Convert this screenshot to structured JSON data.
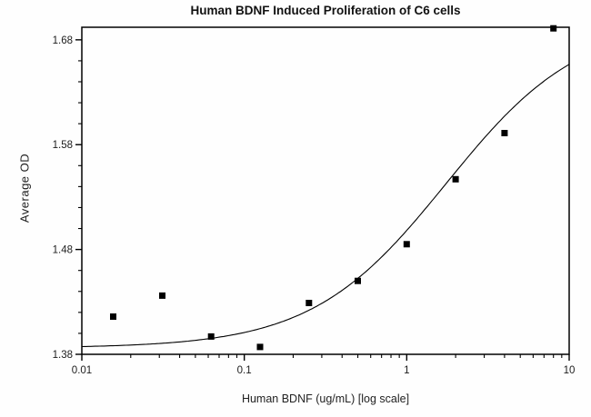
{
  "chart_data": {
    "type": "scatter",
    "title": "Human BDNF Induced Proliferation of C6 cells",
    "xlabel": "Human BDNF (ug/mL) [log scale]",
    "ylabel": "Average OD",
    "x_scale": "log",
    "xlim": [
      0.01,
      10
    ],
    "ylim": [
      1.38,
      1.692
    ],
    "x_major_ticks": [
      0.01,
      0.1,
      1,
      10
    ],
    "x_major_tick_labels": [
      "0.01",
      "0.1",
      "1",
      "10"
    ],
    "x_minor_multipliers": [
      2,
      3,
      4,
      5,
      6,
      7,
      8,
      9
    ],
    "y_major_ticks": [
      1.38,
      1.48,
      1.58,
      1.68
    ],
    "y_major_tick_labels": [
      "1.38",
      "1.48",
      "1.58",
      "1.68"
    ],
    "y_minor_step": 0.02,
    "grid": false,
    "legend_position": "none",
    "marker": "filled-square",
    "marker_color": "#000000",
    "line_color": "#000000",
    "axis_color": "#000000",
    "background_color": "#fefefe",
    "series": [
      {
        "name": "Average OD",
        "points": [
          {
            "x": 0.0156,
            "y": 1.416
          },
          {
            "x": 0.0313,
            "y": 1.436
          },
          {
            "x": 0.0625,
            "y": 1.397
          },
          {
            "x": 0.125,
            "y": 1.387
          },
          {
            "x": 0.25,
            "y": 1.429
          },
          {
            "x": 0.5,
            "y": 1.45
          },
          {
            "x": 1,
            "y": 1.485
          },
          {
            "x": 2,
            "y": 1.547
          },
          {
            "x": 4,
            "y": 1.591
          },
          {
            "x": 8,
            "y": 1.691
          }
        ]
      }
    ],
    "fit_curve": {
      "model": "4PL",
      "bottom": 1.386,
      "top": 1.7,
      "ec50": 1.75,
      "hill": 1.05
    }
  }
}
